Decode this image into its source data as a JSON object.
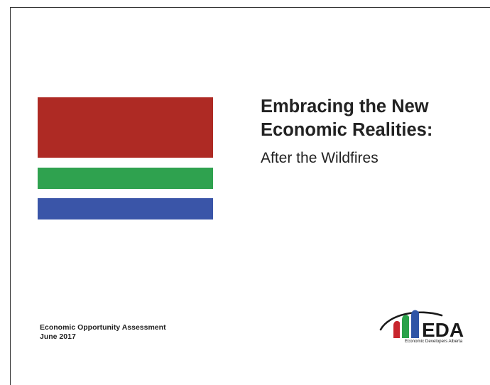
{
  "title": {
    "line1": "Embracing the New",
    "line2": "Economic Realities:"
  },
  "subtitle": "After the Wildfires",
  "report": {
    "name": "Economic Opportunity Assessment",
    "date": "June 2017"
  },
  "logo": {
    "wordmark": "EDA",
    "caption": "Economic Developers Alberta",
    "colors": {
      "red": "#c8262e",
      "green": "#2aa24a",
      "blue": "#2f55a6",
      "dark": "#1a1a1a"
    }
  },
  "colors": {
    "band_red": "#ae2a24",
    "band_green": "#2fa24f",
    "band_blue": "#3a55a8"
  }
}
